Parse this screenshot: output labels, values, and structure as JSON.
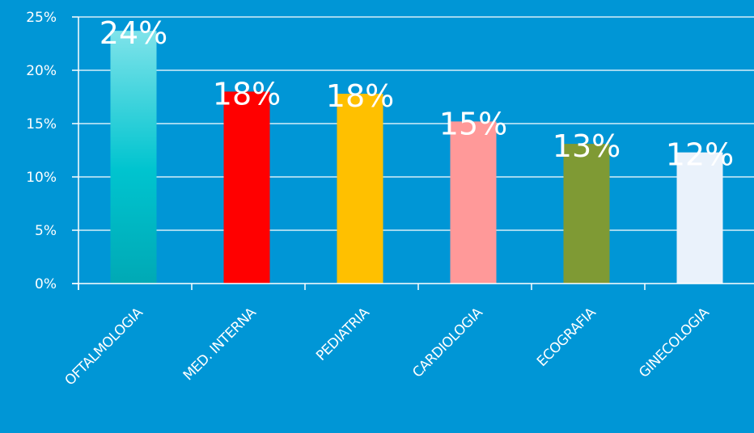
{
  "chart_data": {
    "type": "bar",
    "categories": [
      "OFTALMOLOGIA",
      "MED. INTERNA",
      "PEDIATRIA",
      "CARDIOLOGIA",
      "ECOGRAFIA",
      "GINECOLOGIA"
    ],
    "values": [
      24,
      18,
      18,
      15,
      13,
      12
    ],
    "bar_values": [
      23.7,
      18.0,
      17.8,
      15.2,
      13.1,
      12.3
    ],
    "data_labels": [
      "24%",
      "18%",
      "18%",
      "15%",
      "13%",
      "12%"
    ],
    "bar_colors": [
      "#00C4CF",
      "#FF0000",
      "#FFC000",
      "#FF9999",
      "#7F9A34",
      "#EAF2FB"
    ],
    "y_ticks": [
      0,
      5,
      10,
      15,
      20,
      25
    ],
    "y_tick_labels": [
      "0%",
      "5%",
      "10%",
      "15%",
      "20%",
      "25%"
    ],
    "ylim": [
      0,
      25
    ],
    "title": "",
    "xlabel": "",
    "ylabel": "",
    "grid": true,
    "legend": "none",
    "background_color": "#0096D6",
    "axis_color": "#FFFFFF"
  }
}
